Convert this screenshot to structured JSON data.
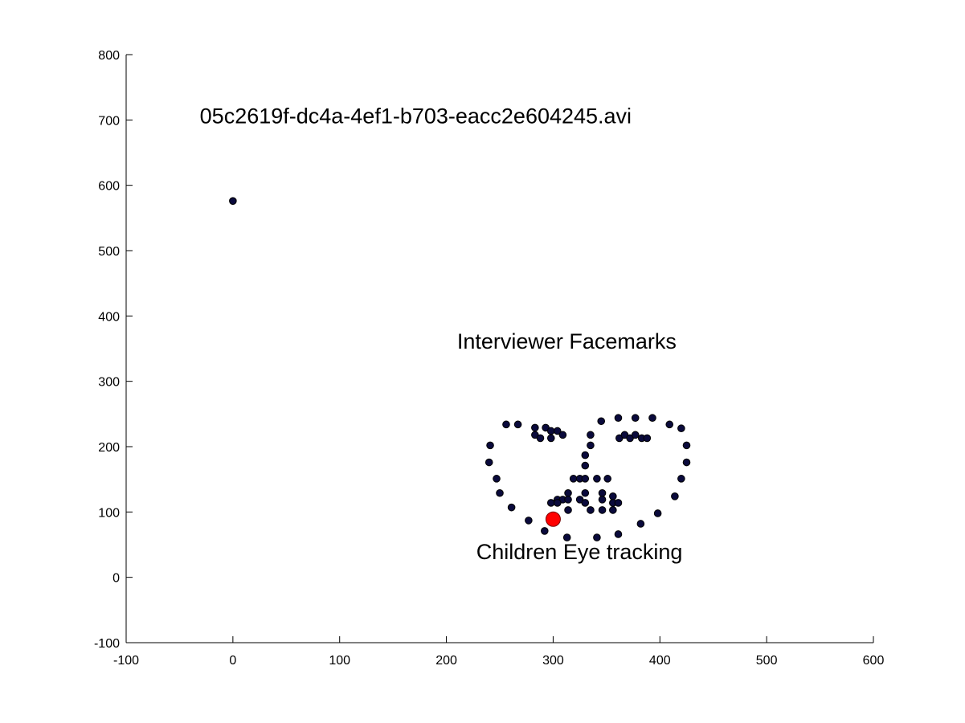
{
  "chart_data": {
    "type": "scatter",
    "xlim": [
      -100,
      600
    ],
    "ylim": [
      -100,
      800
    ],
    "x_ticks": [
      -100,
      0,
      100,
      200,
      300,
      400,
      500,
      600
    ],
    "y_ticks": [
      -100,
      0,
      100,
      200,
      300,
      400,
      500,
      600,
      700,
      800
    ],
    "grid": false,
    "legend": "none",
    "annotations": [
      {
        "text": "05c2619f-dc4a-4ef1-b703-eacc2e604245.avi",
        "x": -31,
        "y": 695
      },
      {
        "text": "Interviewer Facemarks",
        "x": 210,
        "y": 350
      },
      {
        "text": "Children Eye tracking",
        "x": 228,
        "y": 28
      }
    ],
    "series": [
      {
        "role": "facemarks",
        "color": "#0a0a3c",
        "points": [
          [
            0,
            576
          ],
          [
            241,
            202
          ],
          [
            240,
            176
          ],
          [
            247,
            151
          ],
          [
            250,
            129
          ],
          [
            261,
            107
          ],
          [
            277,
            87
          ],
          [
            292,
            71
          ],
          [
            313,
            61
          ],
          [
            341,
            61
          ],
          [
            361,
            66
          ],
          [
            382,
            82
          ],
          [
            398,
            98
          ],
          [
            414,
            124
          ],
          [
            420,
            151
          ],
          [
            425,
            176
          ],
          [
            425,
            202
          ],
          [
            420,
            228
          ],
          [
            256,
            234
          ],
          [
            267,
            234
          ],
          [
            283,
            229
          ],
          [
            293,
            229
          ],
          [
            298,
            224
          ],
          [
            304,
            224
          ],
          [
            283,
            218
          ],
          [
            288,
            213
          ],
          [
            298,
            213
          ],
          [
            309,
            218
          ],
          [
            345,
            239
          ],
          [
            361,
            244
          ],
          [
            377,
            244
          ],
          [
            393,
            244
          ],
          [
            409,
            234
          ],
          [
            362,
            213
          ],
          [
            367,
            218
          ],
          [
            372,
            213
          ],
          [
            377,
            218
          ],
          [
            383,
            213
          ],
          [
            388,
            213
          ],
          [
            335,
            218
          ],
          [
            335,
            202
          ],
          [
            330,
            187
          ],
          [
            330,
            171
          ],
          [
            319,
            151
          ],
          [
            325,
            151
          ],
          [
            330,
            151
          ],
          [
            341,
            151
          ],
          [
            351,
            151
          ],
          [
            314,
            129
          ],
          [
            330,
            129
          ],
          [
            346,
            129
          ],
          [
            356,
            124
          ],
          [
            298,
            114
          ],
          [
            304,
            119
          ],
          [
            309,
            119
          ],
          [
            314,
            119
          ],
          [
            325,
            119
          ],
          [
            330,
            114
          ],
          [
            346,
            119
          ],
          [
            356,
            114
          ],
          [
            361,
            114
          ],
          [
            304,
            114
          ],
          [
            314,
            103
          ],
          [
            335,
            103
          ],
          [
            346,
            103
          ],
          [
            356,
            103
          ]
        ]
      },
      {
        "role": "eye-tracking",
        "color": "#ff0000",
        "points": [
          [
            300,
            89
          ]
        ]
      }
    ]
  }
}
